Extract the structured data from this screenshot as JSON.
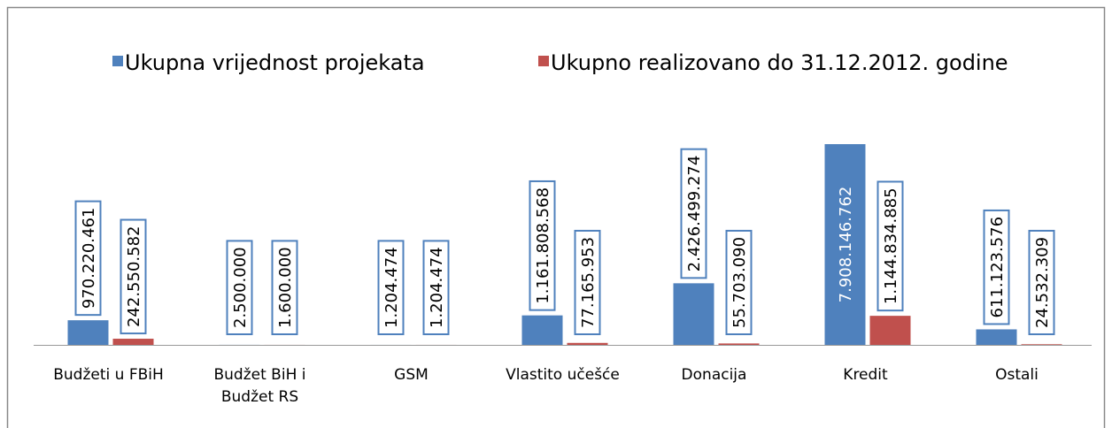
{
  "chart_data": {
    "type": "bar",
    "categories": [
      "Budžeti u FBiH",
      "Budžet BiH i Budžet RS",
      "GSM",
      "Vlastito učešće",
      "Donacija",
      "Kredit",
      "Ostali"
    ],
    "series": [
      {
        "name": "Ukupna vrijednost projekata",
        "color": "#4f81bd",
        "values": [
          970220461,
          2500000,
          1204474,
          1161808568,
          2426499274,
          7908146762,
          611123576
        ],
        "value_labels": [
          "970.220.461",
          "2.500.000",
          "1.204.474",
          "1.161.808.568",
          "2.426.499.274",
          "7.908.146.762",
          "611.123.576"
        ]
      },
      {
        "name": "Ukupno realizovano do 31.12.2012. godine",
        "color": "#c0504d",
        "values": [
          242550582,
          1600000,
          1204474,
          77165953,
          55703090,
          1144834885,
          24532309
        ],
        "value_labels": [
          "242.550.582",
          "1.600.000",
          "1.204.474",
          "77.165.953",
          "55.703.090",
          "1.144.834.885",
          "24.532.309"
        ]
      }
    ],
    "legend": "top"
  }
}
